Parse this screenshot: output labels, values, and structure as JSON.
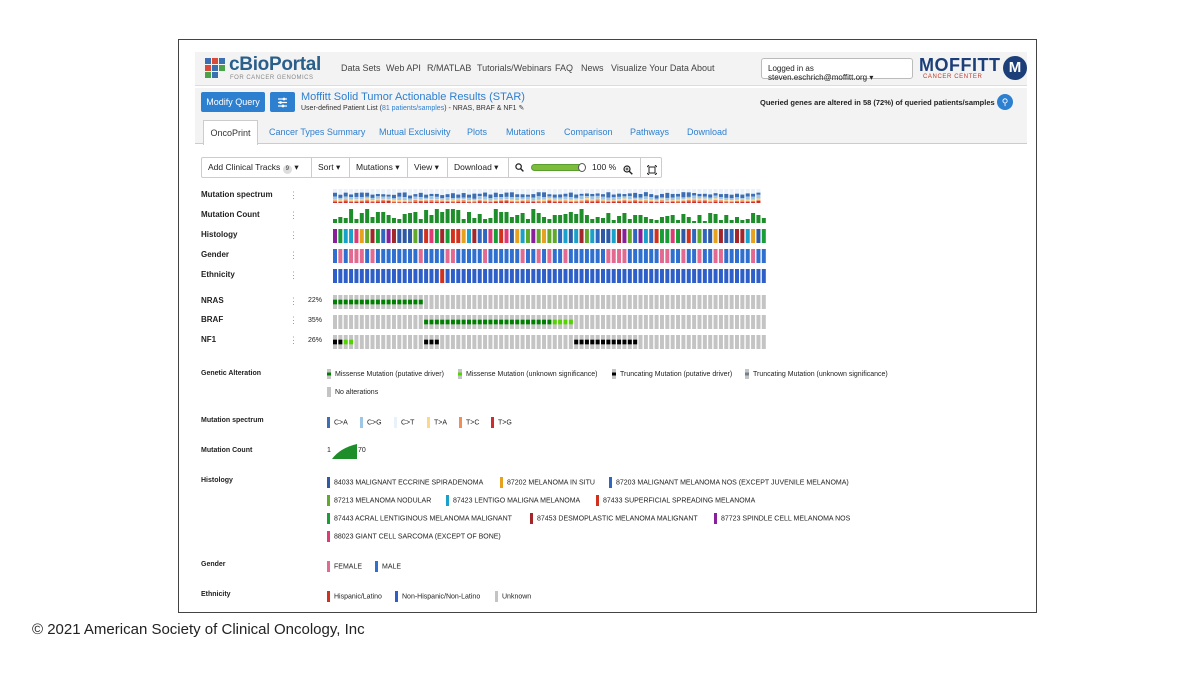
{
  "copyright": "© 2021 American Society of Clinical Oncology, Inc",
  "colors": {
    "accent": "#2d7fd0",
    "missense_driver": "#008000",
    "missense_unknown": "#53d400",
    "truncating_driver": "#000000",
    "truncating_unknown": "#708090",
    "no_alteration": "#c4c4c4"
  },
  "header": {
    "logo": "cBioPortal",
    "logo_sub": "FOR CANCER GENOMICS",
    "nav": [
      "Data Sets",
      "Web API",
      "R/MATLAB",
      "Tutorials/Webinars",
      "FAQ",
      "News",
      "Visualize Your Data",
      "About"
    ],
    "login": "Logged in as steven.eschrich@moffitt.org ▾",
    "partner": "MOFFITT",
    "partner_sub": "CANCER CENTER",
    "partner_icon": "M"
  },
  "query": {
    "modify_label": "Modify Query",
    "settings_icon": "sliders-icon",
    "title": "Moffitt Solid Tumor Actionable Results (STAR)",
    "subtitle_prefix": "User-defined Patient List (",
    "subtitle_link": "81 patients/samples",
    "subtitle_suffix": ")  - NRAS, BRAF & NF1 ✎",
    "altered": "Queried genes are altered in 58 (72%) of queried patients/samples",
    "share_icon": "link-icon"
  },
  "tabs": {
    "active": "OncoPrint",
    "items": [
      "Cancer Types Summary",
      "Mutual Exclusivity",
      "Plots",
      "Mutations",
      "Comparison",
      "Pathways",
      "Download"
    ]
  },
  "toolbar": {
    "clinical": "Add Clinical Tracks",
    "clinical_count": "9",
    "sort": "Sort ▾",
    "mutations": "Mutations ▾",
    "view": "View ▾",
    "download": "Download ▾",
    "zoom_out_icon": "zoom-out-icon",
    "zoom_level": 1.0,
    "zoom_value": "100",
    "zoom_unit": "%",
    "zoom_in_icon": "zoom-in-icon",
    "fit_icon": "fit-columns-icon"
  },
  "tracks": {
    "clinical": [
      "Mutation spectrum",
      "Mutation Count",
      "Histology",
      "Gender",
      "Ethnicity"
    ],
    "genes": [
      {
        "name": "NRAS",
        "pct": "22%"
      },
      {
        "name": "BRAF",
        "pct": "35%"
      },
      {
        "name": "NF1",
        "pct": "26%"
      }
    ]
  },
  "legend": {
    "genetic_alteration": {
      "title": "Genetic Alteration",
      "items": [
        "Missense Mutation (putative driver)",
        "Missense Mutation (unknown significance)",
        "Truncating Mutation (putative driver)",
        "Truncating Mutation (unknown significance)",
        "No alterations"
      ]
    },
    "mutation_spectrum": {
      "title": "Mutation spectrum",
      "items": [
        {
          "label": "C>A",
          "color": "#3d6eb4"
        },
        {
          "label": "C>G",
          "color": "#9fc6e4"
        },
        {
          "label": "C>T",
          "color": "#e9f1fa"
        },
        {
          "label": "T>A",
          "color": "#fcd88c"
        },
        {
          "label": "T>C",
          "color": "#ee8f5a"
        },
        {
          "label": "T>G",
          "color": "#cf2d2d"
        }
      ]
    },
    "mutation_count": {
      "title": "Mutation Count",
      "min": "1",
      "max": "70",
      "color": "#1e8e2a"
    },
    "histology": {
      "title": "Histology",
      "items": [
        {
          "label": "84033 MALIGNANT ECCRINE SPIRADENOMA",
          "color": "#2e5aa5"
        },
        {
          "label": "87202 MELANOMA IN SITU",
          "color": "#e6a11f"
        },
        {
          "label": "87203 MALIGNANT MELANOMA NOS (EXCEPT JUVENILE MELANOMA)",
          "color": "#2f67c0"
        },
        {
          "label": "87213 MELANOMA NODULAR",
          "color": "#61a92a"
        },
        {
          "label": "87423 LENTIGO MALIGNA MELANOMA",
          "color": "#1aa1c9"
        },
        {
          "label": "87433 SUPERFICIAL SPREADING MELANOMA",
          "color": "#d2321d"
        },
        {
          "label": "87443 ACRAL LENTIGINOUS MELANOMA MALIGNANT",
          "color": "#179e36"
        },
        {
          "label": "87453 DESMOPLASTIC MELANOMA MALIGNANT",
          "color": "#a3262a"
        },
        {
          "label": "87723 SPINDLE CELL MELANOMA NOS",
          "color": "#8a1f9b"
        },
        {
          "label": "88023 GIANT CELL SARCOMA (EXCEPT OF BONE)",
          "color": "#de3b76"
        }
      ]
    },
    "gender": {
      "title": "Gender",
      "items": [
        {
          "label": "FEMALE",
          "color": "#e2698f"
        },
        {
          "label": "MALE",
          "color": "#2e6fd0"
        }
      ]
    },
    "ethnicity": {
      "title": "Ethnicity",
      "items": [
        {
          "label": "Hispanic/Latino",
          "color": "#d2321d"
        },
        {
          "label": "Non-Hispanic/Non-Latino",
          "color": "#2e5fc8"
        },
        {
          "label": "Unknown",
          "color": "#c4c4c4"
        }
      ]
    }
  }
}
